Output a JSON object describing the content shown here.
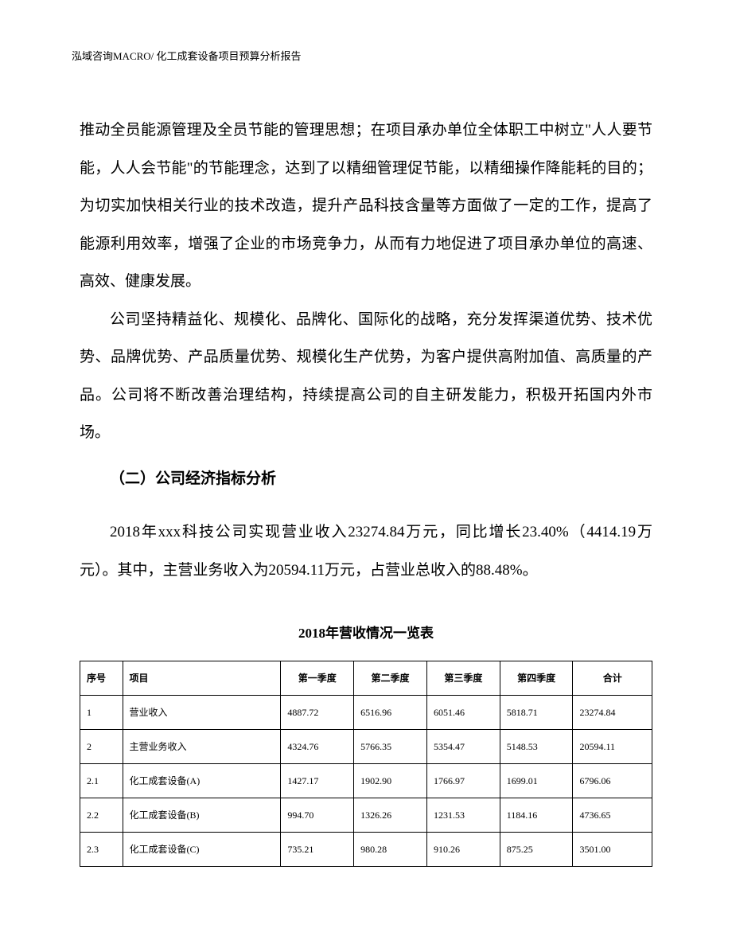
{
  "header": {
    "company": "泓域咨询MACRO/",
    "title": "化工成套设备项目预算分析报告"
  },
  "paragraphs": {
    "p1": "推动全员能源管理及全员节能的管理思想；在项目承办单位全体职工中树立\"人人要节能，人人会节能\"的节能理念，达到了以精细管理促节能，以精细操作降能耗的目的；为切实加快相关行业的技术改造，提升产品科技含量等方面做了一定的工作，提高了能源利用效率，增强了企业的市场竞争力，从而有力地促进了项目承办单位的高速、高效、健康发展。",
    "p2": "公司坚持精益化、规模化、品牌化、国际化的战略，充分发挥渠道优势、技术优势、品牌优势、产品质量优势、规模化生产优势，为客户提供高附加值、高质量的产品。公司将不断改善治理结构，持续提高公司的自主研发能力，积极开拓国内外市场。",
    "p3": "2018年xxx科技公司实现营业收入23274.84万元，同比增长23.40%（4414.19万元）。其中，主营业务收入为20594.11万元，占营业总收入的88.48%。"
  },
  "section_title": "（二）公司经济指标分析",
  "table_title": "2018年营收情况一览表",
  "table": {
    "headers": {
      "seq": "序号",
      "item": "项目",
      "q1": "第一季度",
      "q2": "第二季度",
      "q3": "第三季度",
      "q4": "第四季度",
      "total": "合计"
    },
    "rows": [
      {
        "seq": "1",
        "item": "营业收入",
        "q1": "4887.72",
        "q2": "6516.96",
        "q3": "6051.46",
        "q4": "5818.71",
        "total": "23274.84"
      },
      {
        "seq": "2",
        "item": "主营业务收入",
        "q1": "4324.76",
        "q2": "5766.35",
        "q3": "5354.47",
        "q4": "5148.53",
        "total": "20594.11"
      },
      {
        "seq": "2.1",
        "item": "化工成套设备(A)",
        "q1": "1427.17",
        "q2": "1902.90",
        "q3": "1766.97",
        "q4": "1699.01",
        "total": "6796.06"
      },
      {
        "seq": "2.2",
        "item": "化工成套设备(B)",
        "q1": "994.70",
        "q2": "1326.26",
        "q3": "1231.53",
        "q4": "1184.16",
        "total": "4736.65"
      },
      {
        "seq": "2.3",
        "item": "化工成套设备(C)",
        "q1": "735.21",
        "q2": "980.28",
        "q3": "910.26",
        "q4": "875.25",
        "total": "3501.00"
      }
    ]
  }
}
